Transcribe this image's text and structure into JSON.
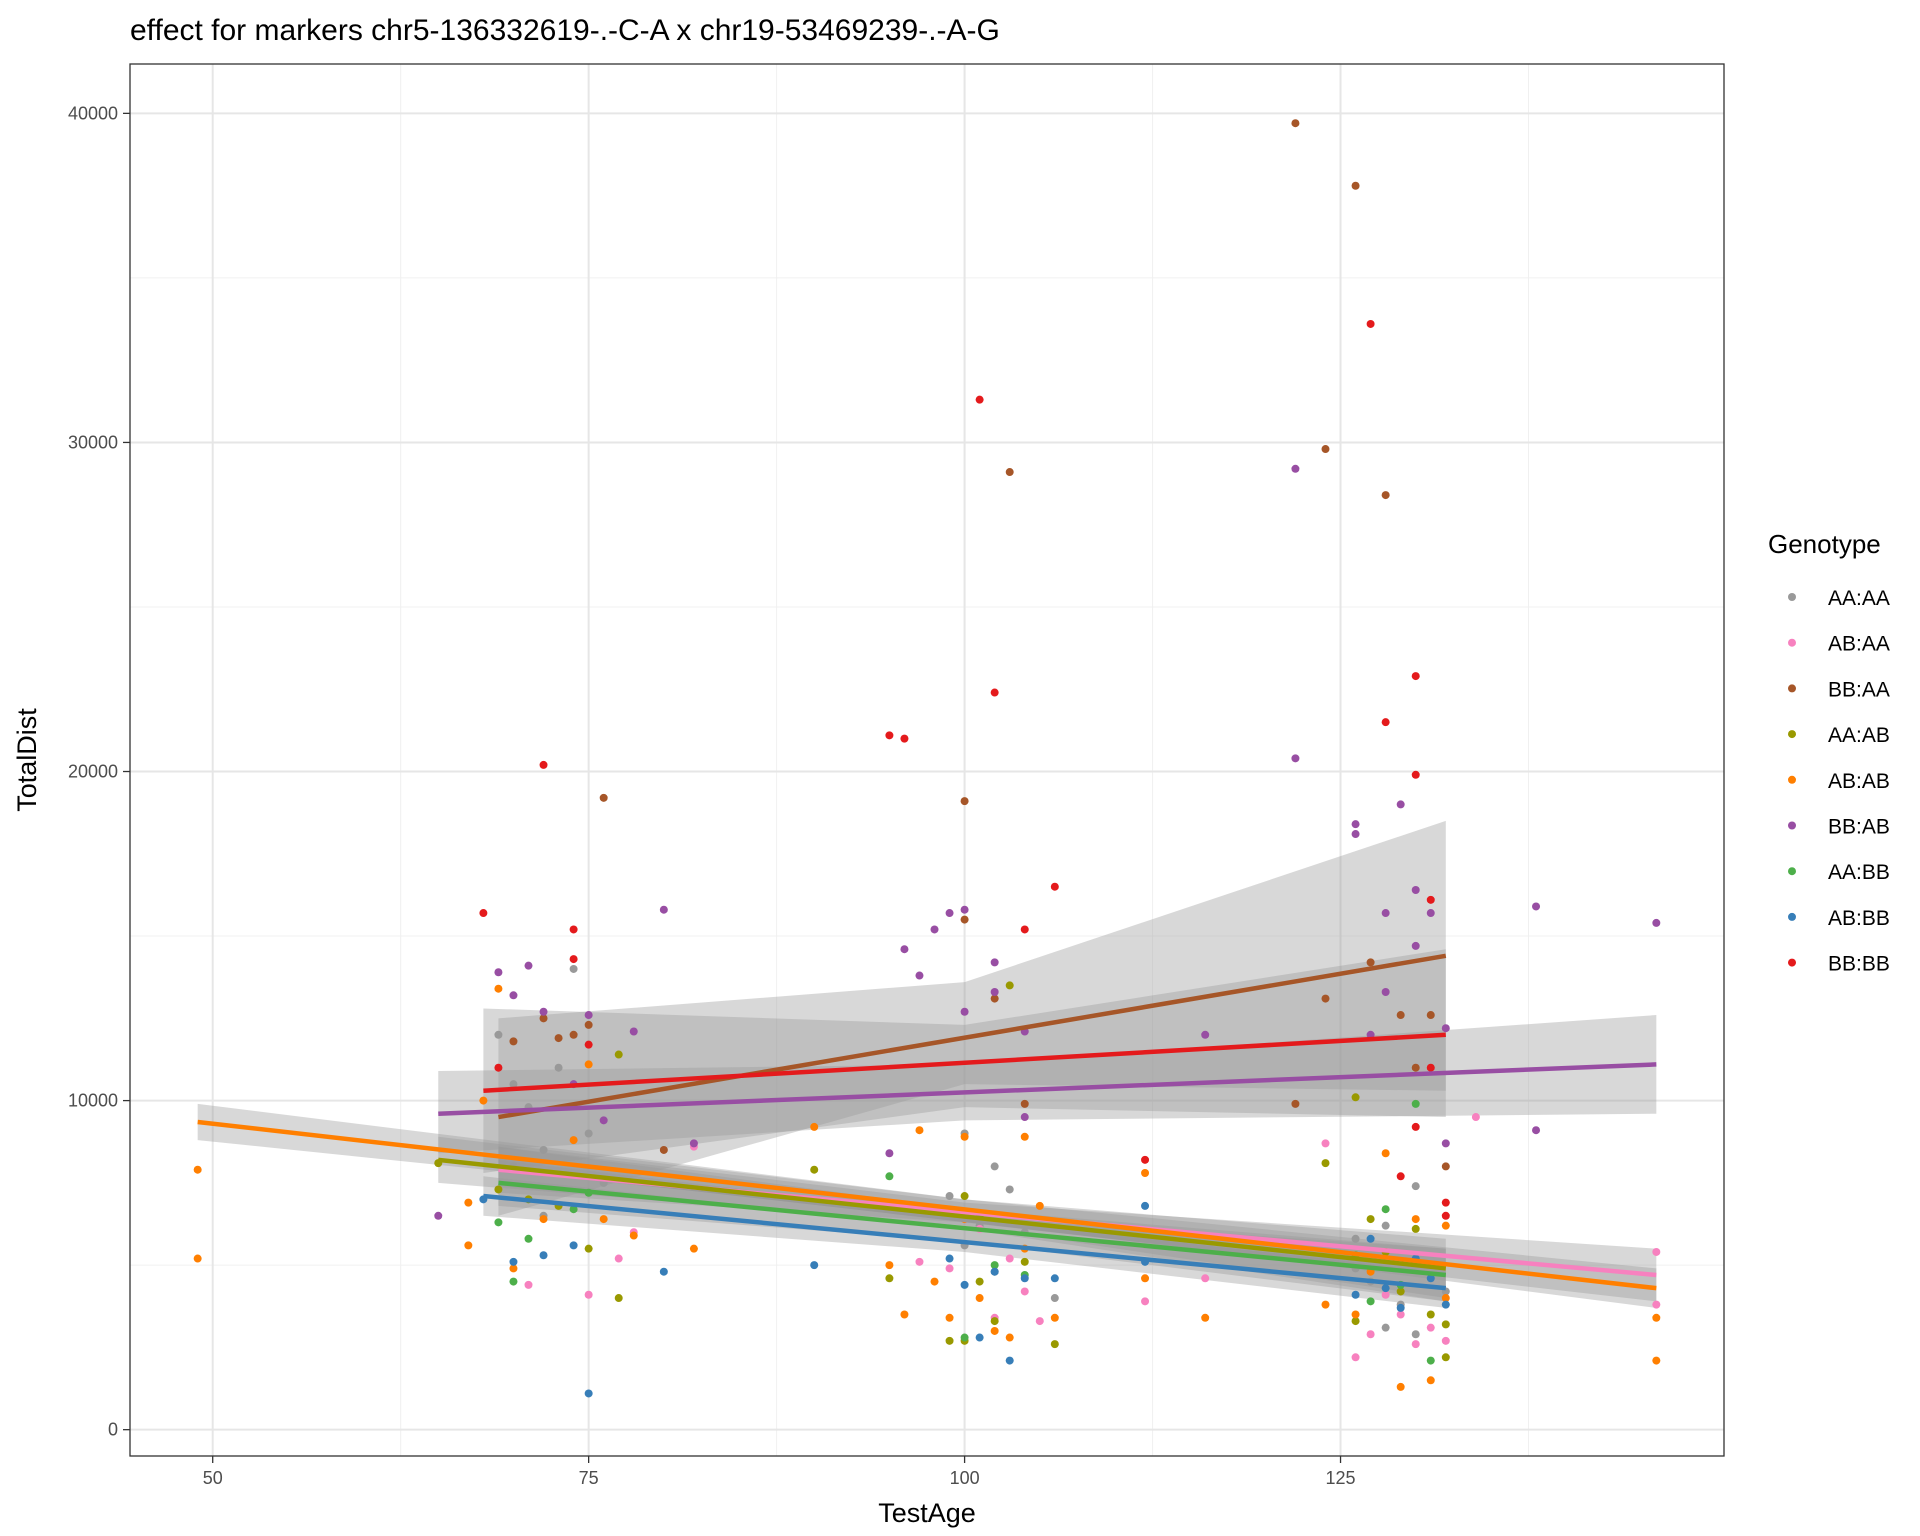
{
  "chart_data": {
    "type": "scatter",
    "title": "effect for markers chr5-136332619-.-C-A x chr19-53469239-.-A-G",
    "xlabel": "TestAge",
    "ylabel": "TotalDist",
    "xlim": [
      44.5,
      150.5
    ],
    "ylim": [
      -800,
      41500
    ],
    "x_ticks": [
      50,
      75,
      100,
      125
    ],
    "y_ticks": [
      0,
      10000,
      20000,
      30000,
      40000
    ],
    "x_minor": [
      62.5,
      87.5,
      112.5,
      137.5
    ],
    "y_minor": [
      5000,
      15000,
      25000,
      35000
    ],
    "grid": true,
    "legend_title": "Genotype",
    "legend_position": "right",
    "series": [
      {
        "name": "AA:AA",
        "color": "#999999",
        "points": [
          [
            69,
            12000
          ],
          [
            70,
            10500
          ],
          [
            71,
            9800
          ],
          [
            72,
            8500
          ],
          [
            73,
            11000
          ],
          [
            74,
            14000
          ],
          [
            75,
            9000
          ],
          [
            76,
            7500
          ],
          [
            72,
            6500
          ],
          [
            70,
            8000
          ],
          [
            98,
            6600
          ],
          [
            99,
            7100
          ],
          [
            100,
            5600
          ],
          [
            101,
            6200
          ],
          [
            102,
            4800
          ],
          [
            103,
            7300
          ],
          [
            104,
            6000
          ],
          [
            100,
            9000
          ],
          [
            102,
            8000
          ],
          [
            106,
            4000
          ],
          [
            126,
            5800
          ],
          [
            127,
            4500
          ],
          [
            128,
            6200
          ],
          [
            129,
            3800
          ],
          [
            130,
            7400
          ],
          [
            131,
            5000
          ],
          [
            132,
            4200
          ],
          [
            128,
            3100
          ],
          [
            126,
            4900
          ],
          [
            130,
            2900
          ]
        ],
        "fit": [
          [
            69,
            8000
          ],
          [
            132,
            4700
          ]
        ],
        "band": [
          [
            69,
            7400,
            8600
          ],
          [
            100,
            6100,
            6700
          ],
          [
            132,
            3900,
            5500
          ]
        ]
      },
      {
        "name": "AB:AA",
        "color": "#F781BF",
        "points": [
          [
            71,
            4400
          ],
          [
            75,
            4100
          ],
          [
            77,
            5200
          ],
          [
            78,
            6000
          ],
          [
            82,
            8600
          ],
          [
            97,
            5100
          ],
          [
            99,
            4900
          ],
          [
            101,
            6100
          ],
          [
            102,
            3400
          ],
          [
            103,
            5200
          ],
          [
            104,
            4200
          ],
          [
            105,
            3300
          ],
          [
            112,
            3900
          ],
          [
            116,
            4600
          ],
          [
            124,
            8700
          ],
          [
            126,
            2200
          ],
          [
            127,
            2900
          ],
          [
            128,
            4100
          ],
          [
            129,
            3500
          ],
          [
            130,
            2600
          ],
          [
            131,
            3100
          ],
          [
            132,
            2700
          ],
          [
            134,
            9500
          ],
          [
            146,
            5400
          ],
          [
            146,
            3800
          ]
        ],
        "fit": [
          [
            69,
            7900
          ],
          [
            146,
            4700
          ]
        ],
        "band": [
          [
            69,
            7200,
            8600
          ],
          [
            100,
            6300,
            6900
          ],
          [
            146,
            3900,
            5500
          ]
        ]
      },
      {
        "name": "BB:AA",
        "color": "#A65628",
        "points": [
          [
            70,
            11800
          ],
          [
            72,
            12500
          ],
          [
            73,
            11900
          ],
          [
            74,
            12000
          ],
          [
            75,
            12300
          ],
          [
            76,
            19200
          ],
          [
            80,
            8500
          ],
          [
            100,
            19100
          ],
          [
            100,
            15500
          ],
          [
            102,
            13100
          ],
          [
            103,
            29100
          ],
          [
            104,
            9900
          ],
          [
            122,
            39700
          ],
          [
            124,
            29800
          ],
          [
            126,
            37800
          ],
          [
            127,
            14200
          ],
          [
            128,
            28400
          ],
          [
            129,
            12600
          ],
          [
            130,
            11000
          ],
          [
            131,
            12600
          ],
          [
            132,
            8000
          ],
          [
            122,
            9900
          ],
          [
            124,
            13100
          ]
        ],
        "fit": [
          [
            69,
            9500
          ],
          [
            132,
            14400
          ]
        ],
        "band": [
          [
            69,
            6500,
            12500
          ],
          [
            100,
            10500,
            13600
          ],
          [
            132,
            10300,
            18500
          ]
        ]
      },
      {
        "name": "AA:AB",
        "color": "#999900",
        "points": [
          [
            65,
            8100
          ],
          [
            69,
            7300
          ],
          [
            71,
            7000
          ],
          [
            73,
            6800
          ],
          [
            75,
            5500
          ],
          [
            77,
            11400
          ],
          [
            77,
            4000
          ],
          [
            90,
            7900
          ],
          [
            95,
            4600
          ],
          [
            99,
            2700
          ],
          [
            100,
            2700
          ],
          [
            100,
            7100
          ],
          [
            101,
            4500
          ],
          [
            102,
            3300
          ],
          [
            103,
            13500
          ],
          [
            104,
            5100
          ],
          [
            106,
            2600
          ],
          [
            124,
            8100
          ],
          [
            126,
            3300
          ],
          [
            126,
            10100
          ],
          [
            127,
            6400
          ],
          [
            128,
            5400
          ],
          [
            129,
            4200
          ],
          [
            130,
            6100
          ],
          [
            131,
            3500
          ],
          [
            132,
            3200
          ],
          [
            132,
            2200
          ]
        ],
        "fit": [
          [
            65,
            8200
          ],
          [
            132,
            4900
          ]
        ],
        "band": [
          [
            65,
            7500,
            8900
          ],
          [
            100,
            6200,
            7000
          ],
          [
            132,
            4000,
            5800
          ]
        ]
      },
      {
        "name": "AB:AB",
        "color": "#FF7F00",
        "points": [
          [
            49,
            7900
          ],
          [
            49,
            5200
          ],
          [
            67,
            6900
          ],
          [
            67,
            5600
          ],
          [
            68,
            10000
          ],
          [
            69,
            13400
          ],
          [
            70,
            4900
          ],
          [
            72,
            6400
          ],
          [
            74,
            8800
          ],
          [
            75,
            11100
          ],
          [
            76,
            6400
          ],
          [
            78,
            5900
          ],
          [
            82,
            5500
          ],
          [
            90,
            9200
          ],
          [
            95,
            5000
          ],
          [
            96,
            3500
          ],
          [
            97,
            9100
          ],
          [
            98,
            4500
          ],
          [
            99,
            3400
          ],
          [
            100,
            8900
          ],
          [
            100,
            6400
          ],
          [
            101,
            4000
          ],
          [
            102,
            3000
          ],
          [
            103,
            2800
          ],
          [
            104,
            8900
          ],
          [
            104,
            5500
          ],
          [
            105,
            6800
          ],
          [
            106,
            3400
          ],
          [
            112,
            7800
          ],
          [
            112,
            4600
          ],
          [
            116,
            3400
          ],
          [
            124,
            3800
          ],
          [
            126,
            3500
          ],
          [
            127,
            4800
          ],
          [
            128,
            8400
          ],
          [
            129,
            1300
          ],
          [
            130,
            6400
          ],
          [
            131,
            1500
          ],
          [
            132,
            6200
          ],
          [
            132,
            4000
          ],
          [
            146,
            3400
          ],
          [
            146,
            2100
          ]
        ],
        "fit": [
          [
            49,
            9350
          ],
          [
            146,
            4300
          ]
        ],
        "band": [
          [
            49,
            8800,
            9900
          ],
          [
            100,
            6400,
            7000
          ],
          [
            146,
            3700,
            4900
          ]
        ]
      },
      {
        "name": "BB:AB",
        "color": "#984EA3",
        "points": [
          [
            65,
            6500
          ],
          [
            69,
            13900
          ],
          [
            70,
            13200
          ],
          [
            71,
            14100
          ],
          [
            72,
            12700
          ],
          [
            74,
            10500
          ],
          [
            75,
            12600
          ],
          [
            76,
            9400
          ],
          [
            78,
            12100
          ],
          [
            80,
            15800
          ],
          [
            82,
            8700
          ],
          [
            95,
            8400
          ],
          [
            96,
            14600
          ],
          [
            97,
            13800
          ],
          [
            98,
            15200
          ],
          [
            99,
            15700
          ],
          [
            100,
            15800
          ],
          [
            100,
            12700
          ],
          [
            102,
            14200
          ],
          [
            102,
            13300
          ],
          [
            104,
            12100
          ],
          [
            104,
            9500
          ],
          [
            116,
            12000
          ],
          [
            122,
            29200
          ],
          [
            122,
            20400
          ],
          [
            126,
            18400
          ],
          [
            126,
            18100
          ],
          [
            127,
            12000
          ],
          [
            128,
            15700
          ],
          [
            128,
            13300
          ],
          [
            129,
            19000
          ],
          [
            130,
            16400
          ],
          [
            130,
            14700
          ],
          [
            131,
            15700
          ],
          [
            132,
            12200
          ],
          [
            132,
            8700
          ],
          [
            138,
            15900
          ],
          [
            138,
            9100
          ],
          [
            146,
            15400
          ]
        ],
        "fit": [
          [
            65,
            9600
          ],
          [
            146,
            11100
          ]
        ],
        "band": [
          [
            65,
            8400,
            10900
          ],
          [
            100,
            9400,
            11100
          ],
          [
            146,
            9600,
            12600
          ]
        ]
      },
      {
        "name": "AA:BB",
        "color": "#4DAF4A",
        "points": [
          [
            69,
            6300
          ],
          [
            70,
            4500
          ],
          [
            71,
            5800
          ],
          [
            74,
            6700
          ],
          [
            75,
            7200
          ],
          [
            95,
            7700
          ],
          [
            100,
            2800
          ],
          [
            101,
            6500
          ],
          [
            102,
            5000
          ],
          [
            104,
            4700
          ],
          [
            126,
            5300
          ],
          [
            127,
            3900
          ],
          [
            128,
            6700
          ],
          [
            129,
            4400
          ],
          [
            130,
            9900
          ],
          [
            131,
            2100
          ]
        ],
        "fit": [
          [
            69,
            7500
          ],
          [
            132,
            4700
          ]
        ],
        "band": [
          [
            69,
            6800,
            8200
          ],
          [
            100,
            5700,
            6500
          ],
          [
            132,
            3900,
            5500
          ]
        ]
      },
      {
        "name": "AB:BB",
        "color": "#377EB8",
        "points": [
          [
            68,
            7000
          ],
          [
            70,
            5100
          ],
          [
            72,
            5300
          ],
          [
            74,
            5600
          ],
          [
            75,
            1100
          ],
          [
            80,
            4800
          ],
          [
            90,
            5000
          ],
          [
            99,
            5200
          ],
          [
            100,
            4400
          ],
          [
            101,
            2800
          ],
          [
            102,
            4800
          ],
          [
            103,
            2100
          ],
          [
            104,
            4600
          ],
          [
            106,
            4600
          ],
          [
            112,
            6800
          ],
          [
            112,
            5100
          ],
          [
            126,
            4100
          ],
          [
            127,
            5800
          ],
          [
            128,
            4300
          ],
          [
            129,
            3700
          ],
          [
            130,
            5200
          ],
          [
            131,
            4600
          ],
          [
            132,
            3800
          ]
        ],
        "fit": [
          [
            68,
            7100
          ],
          [
            132,
            4300
          ]
        ],
        "band": [
          [
            68,
            6500,
            7700
          ],
          [
            100,
            5400,
            6100
          ],
          [
            132,
            3700,
            5000
          ]
        ]
      },
      {
        "name": "BB:BB",
        "color": "#E41A1C",
        "points": [
          [
            68,
            15700
          ],
          [
            69,
            11000
          ],
          [
            72,
            20200
          ],
          [
            74,
            15200
          ],
          [
            74,
            14300
          ],
          [
            75,
            11700
          ],
          [
            95,
            21100
          ],
          [
            96,
            21000
          ],
          [
            101,
            31300
          ],
          [
            102,
            22400
          ],
          [
            104,
            15200
          ],
          [
            106,
            16500
          ],
          [
            112,
            8200
          ],
          [
            127,
            33600
          ],
          [
            128,
            21500
          ],
          [
            129,
            7700
          ],
          [
            130,
            22900
          ],
          [
            130,
            19900
          ],
          [
            130,
            9200
          ],
          [
            131,
            16100
          ],
          [
            131,
            11000
          ],
          [
            132,
            6900
          ],
          [
            132,
            6500
          ]
        ],
        "fit": [
          [
            68,
            10300
          ],
          [
            132,
            12000
          ]
        ],
        "band": [
          [
            68,
            7800,
            12800
          ],
          [
            100,
            9800,
            12300
          ],
          [
            132,
            9500,
            14600
          ]
        ]
      }
    ]
  }
}
